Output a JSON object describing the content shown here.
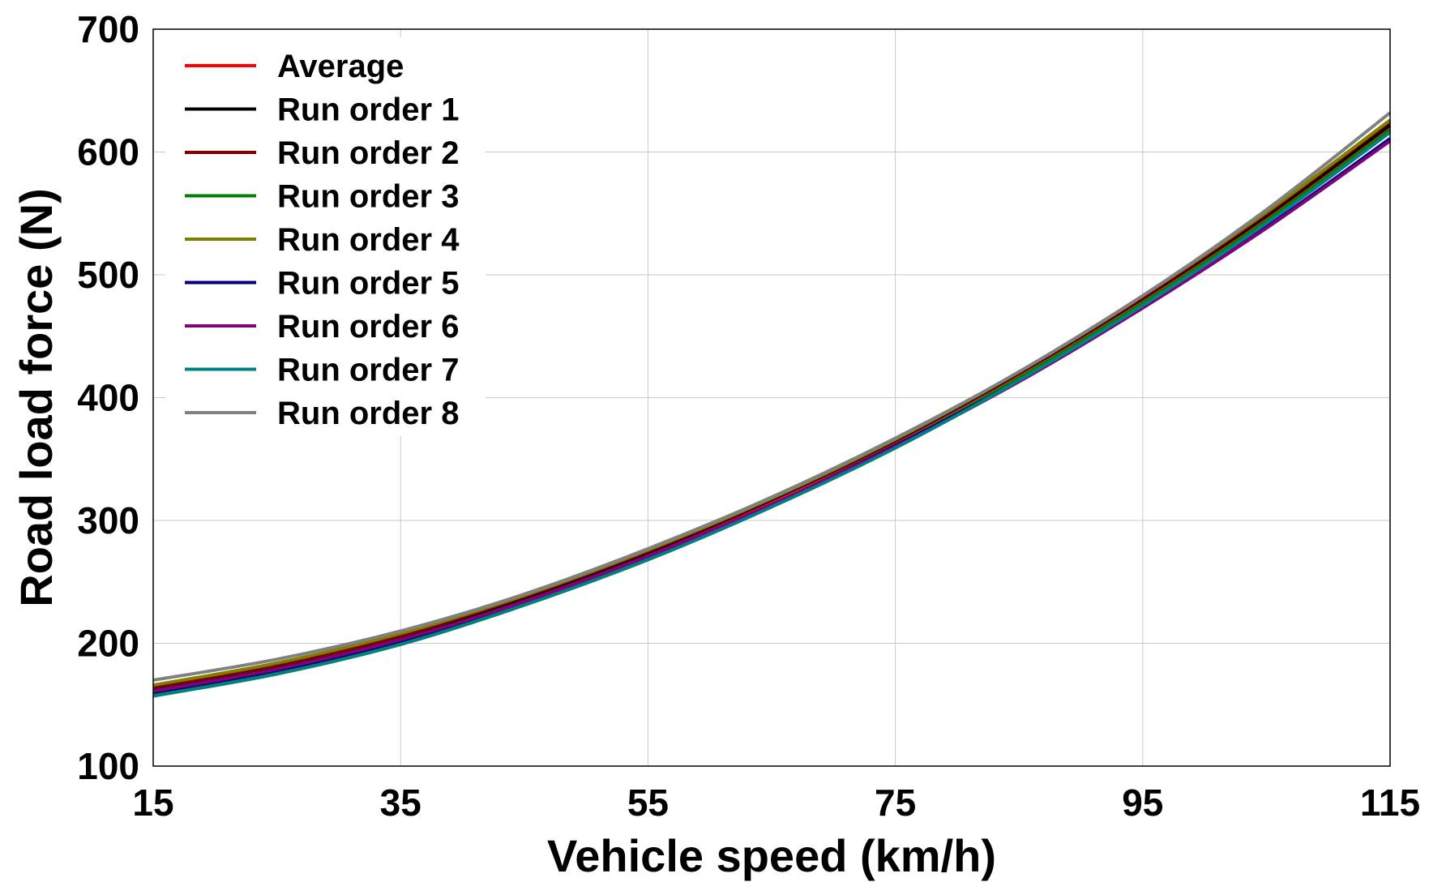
{
  "chart_data": {
    "type": "line",
    "title": "",
    "xlabel": "Vehicle speed (km/h)",
    "ylabel": "Road load force (N)",
    "xlim": [
      15,
      115
    ],
    "ylim": [
      100,
      700
    ],
    "xticks": [
      15,
      35,
      55,
      75,
      95,
      115
    ],
    "yticks": [
      100,
      200,
      300,
      400,
      500,
      600,
      700
    ],
    "x_tick_labels": [
      "15",
      "35",
      "55",
      "75",
      "95",
      "115"
    ],
    "y_tick_labels": [
      "100",
      "200",
      "300",
      "400",
      "500",
      "600",
      "700"
    ],
    "grid": true,
    "legend_position": "top-left",
    "x": [
      15,
      25,
      35,
      45,
      55,
      65,
      75,
      85,
      95,
      105,
      115
    ],
    "series": [
      {
        "name": "Average",
        "color": "#ff0000",
        "values": [
          162,
          180,
          204,
          236,
          273,
          316,
          364,
          419,
          480,
          547,
          621
        ]
      },
      {
        "name": "Run order 1",
        "color": "#000000",
        "values": [
          163,
          181,
          205,
          237,
          274,
          317,
          365,
          420,
          481,
          548,
          622
        ]
      },
      {
        "name": "Run order 2",
        "color": "#800000",
        "values": [
          164,
          182,
          206,
          238,
          275,
          318,
          366,
          421,
          482,
          550,
          625
        ]
      },
      {
        "name": "Run order 3",
        "color": "#008000",
        "values": [
          159,
          177,
          201,
          233,
          270,
          313,
          361,
          416,
          477,
          544,
          618
        ]
      },
      {
        "name": "Run order 4",
        "color": "#808000",
        "values": [
          166,
          184,
          208,
          239,
          276,
          318,
          366,
          421,
          483,
          551,
          626
        ]
      },
      {
        "name": "Run order 5",
        "color": "#000080",
        "values": [
          160,
          178,
          202,
          234,
          271,
          313,
          361,
          414,
          474,
          539,
          611
        ]
      },
      {
        "name": "Run order 6",
        "color": "#800080",
        "values": [
          161,
          179,
          203,
          234,
          271,
          313,
          360,
          413,
          473,
          538,
          609
        ]
      },
      {
        "name": "Run order 7",
        "color": "#008080",
        "values": [
          157,
          175,
          199,
          231,
          268,
          311,
          359,
          414,
          475,
          542,
          616
        ]
      },
      {
        "name": "Run order 8",
        "color": "#808080",
        "values": [
          170,
          187,
          210,
          240,
          277,
          319,
          367,
          421,
          483,
          553,
          632
        ]
      }
    ]
  }
}
